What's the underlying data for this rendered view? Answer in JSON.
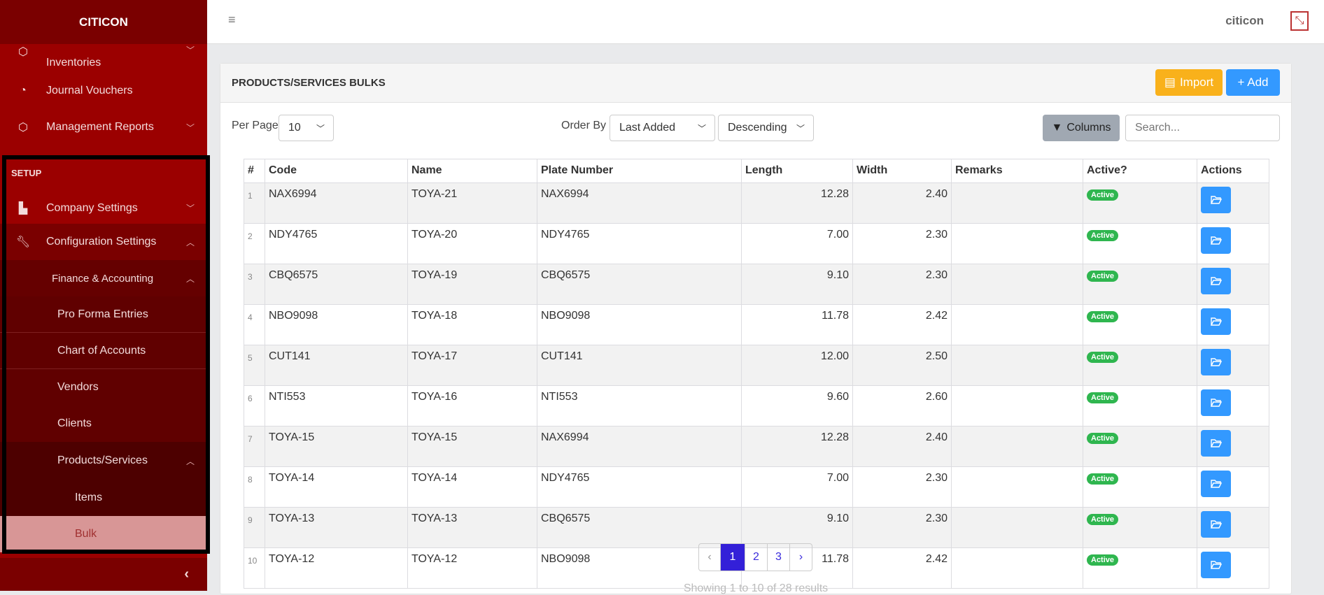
{
  "sidebar": {
    "brand": "CITICON",
    "items": [
      {
        "label": "Inventories",
        "icon": "box-icon"
      },
      {
        "label": "Journal Vouchers",
        "icon": "gauge-icon"
      },
      {
        "label": "Management Reports",
        "icon": "box-icon"
      }
    ],
    "section": "SETUP",
    "setup_items": [
      {
        "label": "Company Settings",
        "icon": "building-icon"
      },
      {
        "label": "Configuration Settings",
        "icon": "wrench-icon"
      },
      {
        "label": "Finance & Accounting"
      },
      {
        "label": "Pro Forma Entries"
      },
      {
        "label": "Chart of Accounts"
      },
      {
        "label": "Vendors"
      },
      {
        "label": "Clients"
      },
      {
        "label": "Products/Services"
      },
      {
        "label": "Items"
      },
      {
        "label": "Bulk",
        "active": true
      }
    ],
    "collapse_icon": "chevron-left-icon"
  },
  "topbar": {
    "user": "citicon",
    "menu_icon": "hamburger-icon",
    "logout_icon": "exit-icon"
  },
  "card": {
    "title": "PRODUCTS/SERVICES BULKS",
    "import_label": "Import",
    "add_label": "+ Add",
    "per_page_label": "Per Page",
    "per_page_value": "10",
    "order_by_label": "Order By",
    "order_by_value": "Last Added",
    "order_dir_value": "Descending",
    "columns_label": "Columns",
    "search_placeholder": "Search..."
  },
  "table": {
    "headers": [
      "#",
      "Code",
      "Name",
      "Plate Number",
      "Length",
      "Width",
      "Remarks",
      "Active?",
      "Actions"
    ],
    "rows": [
      {
        "n": "1",
        "code": "NAX6994",
        "name": "TOYA-21",
        "plate": "NAX6994",
        "length": "12.28",
        "width": "2.40",
        "remarks": "",
        "active": "Active"
      },
      {
        "n": "2",
        "code": "NDY4765",
        "name": "TOYA-20",
        "plate": "NDY4765",
        "length": "7.00",
        "width": "2.30",
        "remarks": "",
        "active": "Active"
      },
      {
        "n": "3",
        "code": "CBQ6575",
        "name": "TOYA-19",
        "plate": "CBQ6575",
        "length": "9.10",
        "width": "2.30",
        "remarks": "",
        "active": "Active"
      },
      {
        "n": "4",
        "code": "NBO9098",
        "name": "TOYA-18",
        "plate": "NBO9098",
        "length": "11.78",
        "width": "2.42",
        "remarks": "",
        "active": "Active"
      },
      {
        "n": "5",
        "code": "CUT141",
        "name": "TOYA-17",
        "plate": "CUT141",
        "length": "12.00",
        "width": "2.50",
        "remarks": "",
        "active": "Active"
      },
      {
        "n": "6",
        "code": "NTI553",
        "name": "TOYA-16",
        "plate": "NTI553",
        "length": "9.60",
        "width": "2.60",
        "remarks": "",
        "active": "Active"
      },
      {
        "n": "7",
        "code": "TOYA-15",
        "name": "TOYA-15",
        "plate": "NAX6994",
        "length": "12.28",
        "width": "2.40",
        "remarks": "",
        "active": "Active"
      },
      {
        "n": "8",
        "code": "TOYA-14",
        "name": "TOYA-14",
        "plate": "NDY4765",
        "length": "7.00",
        "width": "2.30",
        "remarks": "",
        "active": "Active"
      },
      {
        "n": "9",
        "code": "TOYA-13",
        "name": "TOYA-13",
        "plate": "CBQ6575",
        "length": "9.10",
        "width": "2.30",
        "remarks": "",
        "active": "Active"
      },
      {
        "n": "10",
        "code": "TOYA-12",
        "name": "TOYA-12",
        "plate": "NBO9098",
        "length": "11.78",
        "width": "2.42",
        "remarks": "",
        "active": "Active"
      }
    ]
  },
  "pagination": {
    "prev": "‹",
    "pages": [
      "1",
      "2",
      "3"
    ],
    "current": "1",
    "next": "›",
    "summary": "Showing 1 to 10 of 28 results"
  },
  "colors": {
    "sidebar": "#9b0000",
    "brand": "#7a0000",
    "import": "#f9b11b",
    "add": "#3399ff",
    "active_badge": "#2fb64f",
    "page_active": "#3320d8"
  }
}
